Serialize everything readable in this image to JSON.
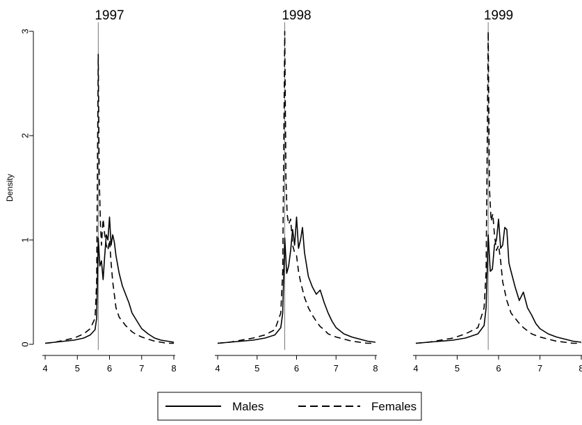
{
  "chart_data": {
    "type": "line",
    "ylabel": "Density",
    "legend": {
      "placement": "bottom"
    },
    "grid": false,
    "xlim": [
      4,
      8
    ],
    "ylim": [
      0,
      3
    ],
    "xticks": [
      "4",
      "5",
      "6",
      "7",
      "8"
    ],
    "yticks": [
      "0",
      "1",
      "2",
      "3"
    ],
    "series_styles": {
      "Males": "solid",
      "Females": "dashed"
    },
    "panels": [
      {
        "title": "1997",
        "vline": 5.65,
        "series": [
          {
            "name": "Males",
            "x": [
              4.0,
              4.3,
              4.6,
              4.9,
              5.2,
              5.4,
              5.55,
              5.6,
              5.65,
              5.7,
              5.75,
              5.8,
              5.85,
              5.9,
              5.95,
              6.0,
              6.05,
              6.1,
              6.15,
              6.2,
              6.3,
              6.4,
              6.5,
              6.6,
              6.7,
              6.8,
              6.9,
              7.0,
              7.2,
              7.4,
              7.6,
              7.8,
              8.0
            ],
            "y": [
              0.01,
              0.02,
              0.03,
              0.04,
              0.06,
              0.09,
              0.14,
              0.25,
              1.02,
              0.75,
              0.8,
              0.62,
              0.85,
              1.05,
              1.0,
              1.22,
              0.95,
              1.05,
              0.98,
              0.85,
              0.68,
              0.56,
              0.48,
              0.4,
              0.3,
              0.25,
              0.2,
              0.15,
              0.1,
              0.06,
              0.04,
              0.03,
              0.02
            ]
          },
          {
            "name": "Females",
            "x": [
              4.0,
              4.3,
              4.6,
              4.9,
              5.2,
              5.4,
              5.55,
              5.6,
              5.65,
              5.68,
              5.72,
              5.75,
              5.8,
              5.85,
              5.9,
              5.95,
              6.0,
              6.05,
              6.1,
              6.15,
              6.2,
              6.3,
              6.4,
              6.5,
              6.6,
              6.7,
              6.8,
              7.0,
              7.2,
              7.4,
              7.6,
              7.8,
              8.0
            ],
            "y": [
              0.01,
              0.02,
              0.04,
              0.06,
              0.1,
              0.15,
              0.25,
              0.6,
              2.78,
              1.6,
              1.15,
              0.95,
              1.2,
              1.05,
              0.95,
              0.9,
              1.0,
              0.78,
              0.6,
              0.48,
              0.35,
              0.26,
              0.22,
              0.18,
              0.15,
              0.12,
              0.1,
              0.07,
              0.05,
              0.03,
              0.02,
              0.01,
              0.01
            ]
          }
        ]
      },
      {
        "title": "1998",
        "vline": 5.7,
        "series": [
          {
            "name": "Males",
            "x": [
              4.0,
              4.3,
              4.6,
              4.9,
              5.2,
              5.45,
              5.6,
              5.65,
              5.7,
              5.75,
              5.8,
              5.85,
              5.9,
              5.95,
              6.0,
              6.05,
              6.1,
              6.15,
              6.2,
              6.3,
              6.4,
              6.5,
              6.6,
              6.7,
              6.8,
              6.9,
              7.0,
              7.2,
              7.4,
              7.6,
              7.8,
              8.0
            ],
            "y": [
              0.01,
              0.02,
              0.03,
              0.04,
              0.06,
              0.09,
              0.16,
              0.3,
              1.02,
              0.68,
              0.75,
              0.9,
              1.1,
              0.95,
              1.22,
              0.92,
              1.0,
              1.12,
              0.88,
              0.65,
              0.55,
              0.48,
              0.52,
              0.4,
              0.3,
              0.22,
              0.16,
              0.1,
              0.07,
              0.05,
              0.03,
              0.02
            ]
          },
          {
            "name": "Females",
            "x": [
              4.0,
              4.3,
              4.6,
              4.9,
              5.2,
              5.45,
              5.6,
              5.65,
              5.7,
              5.73,
              5.76,
              5.8,
              5.85,
              5.9,
              5.95,
              6.0,
              6.05,
              6.1,
              6.2,
              6.3,
              6.4,
              6.5,
              6.6,
              6.7,
              6.8,
              7.0,
              7.2,
              7.4,
              7.6,
              7.8,
              8.0
            ],
            "y": [
              0.01,
              0.02,
              0.04,
              0.06,
              0.09,
              0.14,
              0.3,
              0.7,
              3.0,
              1.6,
              1.25,
              1.15,
              1.2,
              0.95,
              0.88,
              0.85,
              0.7,
              0.6,
              0.45,
              0.35,
              0.28,
              0.22,
              0.17,
              0.14,
              0.1,
              0.07,
              0.05,
              0.03,
              0.02,
              0.01,
              0.01
            ]
          }
        ]
      },
      {
        "title": "1999",
        "vline": 5.75,
        "series": [
          {
            "name": "Males",
            "x": [
              4.0,
              4.3,
              4.6,
              4.9,
              5.2,
              5.5,
              5.65,
              5.7,
              5.75,
              5.8,
              5.85,
              5.9,
              5.95,
              6.0,
              6.05,
              6.1,
              6.15,
              6.2,
              6.25,
              6.3,
              6.4,
              6.5,
              6.6,
              6.7,
              6.8,
              6.9,
              7.0,
              7.2,
              7.4,
              7.6,
              7.8,
              8.0
            ],
            "y": [
              0.01,
              0.02,
              0.03,
              0.04,
              0.06,
              0.1,
              0.18,
              0.35,
              1.05,
              0.7,
              0.72,
              0.95,
              1.0,
              1.2,
              0.92,
              0.95,
              1.12,
              1.1,
              0.78,
              0.7,
              0.55,
              0.42,
              0.5,
              0.35,
              0.28,
              0.2,
              0.15,
              0.1,
              0.07,
              0.05,
              0.03,
              0.02
            ]
          },
          {
            "name": "Females",
            "x": [
              4.0,
              4.3,
              4.6,
              4.9,
              5.2,
              5.5,
              5.65,
              5.7,
              5.75,
              5.78,
              5.82,
              5.86,
              5.9,
              5.95,
              6.0,
              6.05,
              6.1,
              6.2,
              6.3,
              6.4,
              6.5,
              6.6,
              6.7,
              6.8,
              7.0,
              7.2,
              7.4,
              7.6,
              7.8,
              8.0
            ],
            "y": [
              0.01,
              0.02,
              0.04,
              0.06,
              0.1,
              0.16,
              0.35,
              0.7,
              3.0,
              1.5,
              1.18,
              1.25,
              1.05,
              0.9,
              0.95,
              0.8,
              0.6,
              0.42,
              0.3,
              0.25,
              0.2,
              0.16,
              0.13,
              0.1,
              0.07,
              0.05,
              0.03,
              0.02,
              0.01,
              0.01
            ]
          }
        ]
      }
    ]
  }
}
